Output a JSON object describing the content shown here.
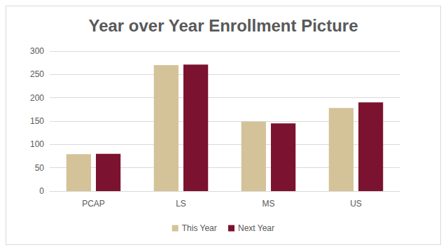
{
  "chart_data": {
    "type": "bar",
    "title": "Year over Year Enrollment Picture",
    "categories": [
      "PCAP",
      "LS",
      "MS",
      "US"
    ],
    "series": [
      {
        "name": "This Year",
        "color": "#d4c299",
        "values": [
          79,
          270,
          149,
          178
        ]
      },
      {
        "name": "Next Year",
        "color": "#7b1230",
        "values": [
          80,
          271,
          145,
          190
        ]
      }
    ],
    "ylim": [
      0,
      300
    ],
    "yticks": [
      0,
      50,
      100,
      150,
      200,
      250,
      300
    ],
    "grid": true,
    "legend": "bottom"
  }
}
